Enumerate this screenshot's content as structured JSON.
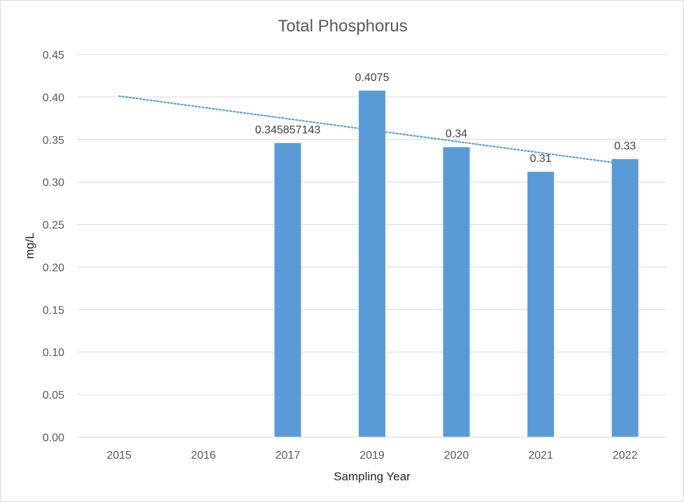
{
  "chart_data": {
    "type": "bar",
    "title": "Total Phosphorus",
    "xlabel": "Sampling Year",
    "ylabel": "mg/L",
    "categories": [
      "2015",
      "2016",
      "2017",
      "2019",
      "2020",
      "2021",
      "2022"
    ],
    "values": [
      null,
      null,
      0.345857143,
      0.4075,
      0.341,
      0.312,
      0.327
    ],
    "data_labels": [
      "",
      "",
      "0.345857143",
      "0.4075",
      "0.34",
      "0.31",
      "0.33"
    ],
    "y_ticks": [
      "0.00",
      "0.05",
      "0.10",
      "0.15",
      "0.20",
      "0.25",
      "0.30",
      "0.35",
      "0.40",
      "0.45"
    ],
    "ylim": [
      0,
      0.45
    ],
    "grid": true,
    "bar_color": "#5b9bd5",
    "trendline": {
      "type": "linear",
      "style": "dotted",
      "color": "#5b9bd5",
      "start": 0.401,
      "end": 0.321
    }
  }
}
